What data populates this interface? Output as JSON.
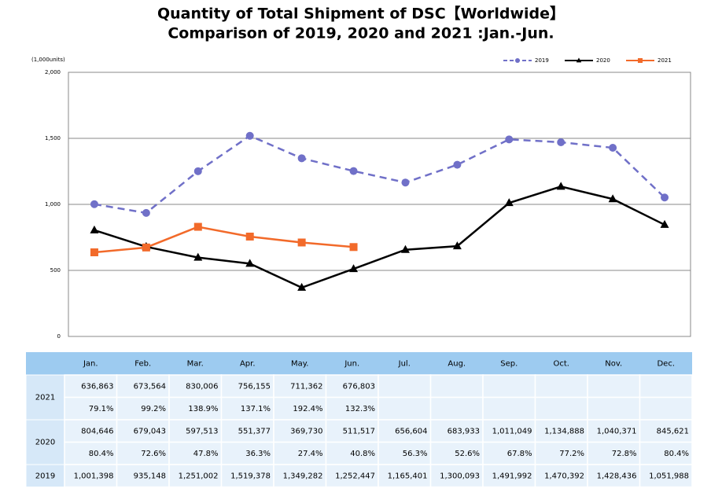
{
  "chart_data": {
    "type": "line",
    "title": "Quantity of Total Shipment of DSC【Worldwide】",
    "subtitle": "Comparison of 2019, 2020 and 2021 :Jan.-Jun.",
    "y_unit_label": "(1,000units)",
    "categories": [
      "Jan.",
      "Feb.",
      "Mar.",
      "Apr.",
      "May.",
      "Jun.",
      "Jul.",
      "Aug.",
      "Sep.",
      "Oct.",
      "Nov.",
      "Dec."
    ],
    "ylim": [
      0,
      2000
    ],
    "yticks": [
      0,
      500,
      {
        "value": 1000,
        "label": "1,000"
      },
      {
        "value": 1500,
        "label": "1,500"
      },
      {
        "value": 2000,
        "label": "2,000"
      }
    ],
    "grid": true,
    "legend": "top-right",
    "series": [
      {
        "name": "2019",
        "color": "#7070c8",
        "dash": true,
        "marker": "circle",
        "values": [
          1001.398,
          935.148,
          1251.002,
          1519.378,
          1349.282,
          1252.447,
          1165.401,
          1300.093,
          1491.992,
          1470.392,
          1428.436,
          1051.988
        ],
        "value_labels": [
          "1,001,398",
          "935,148",
          "1,251,002",
          "1,519,378",
          "1,349,282",
          "1,252,447",
          "1,165,401",
          "1,300,093",
          "1,491,992",
          "1,470,392",
          "1,428,436",
          "1,051,988"
        ]
      },
      {
        "name": "2020",
        "color": "#000000",
        "dash": false,
        "marker": "triangle",
        "values": [
          804.646,
          679.043,
          597.513,
          551.377,
          369.73,
          511.517,
          656.604,
          683.933,
          1011.049,
          1134.888,
          1040.371,
          845.621
        ],
        "value_labels": [
          "804,646",
          "679,043",
          "597,513",
          "551,377",
          "369,730",
          "511,517",
          "656,604",
          "683,933",
          "1,011,049",
          "1,134,888",
          "1,040,371",
          "845,621"
        ],
        "ratios": [
          "80.4%",
          "72.6%",
          "47.8%",
          "36.3%",
          "27.4%",
          "40.8%",
          "56.3%",
          "52.6%",
          "67.8%",
          "77.2%",
          "72.8%",
          "80.4%"
        ]
      },
      {
        "name": "2021",
        "color": "#f26a2a",
        "dash": false,
        "marker": "square",
        "values": [
          636.863,
          673.564,
          830.006,
          756.155,
          711.362,
          676.803,
          null,
          null,
          null,
          null,
          null,
          null
        ],
        "value_labels": [
          "636,863",
          "673,564",
          "830,006",
          "756,155",
          "711,362",
          "676,803",
          null,
          null,
          null,
          null,
          null,
          null
        ],
        "ratios": [
          "79.1%",
          "99.2%",
          "138.9%",
          "137.1%",
          "192.4%",
          "132.3%",
          null,
          null,
          null,
          null,
          null,
          null
        ]
      }
    ]
  }
}
